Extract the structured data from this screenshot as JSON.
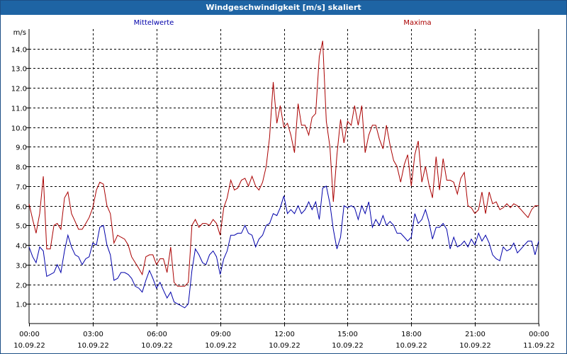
{
  "window": {
    "title": "Windgeschwindigkeit [m/s] skaliert"
  },
  "colors": {
    "background": "#ffffff",
    "title_bar": "#1e64a4",
    "grid": "#000000",
    "mittelwerte": "#0000aa",
    "maxima": "#aa0000"
  },
  "chart_data": {
    "type": "line",
    "title": "Windgeschwindigkeit [m/s] skaliert",
    "ylabel": "m/s",
    "xlabel": "",
    "ylim": [
      0,
      15
    ],
    "xlim": [
      0,
      24
    ],
    "y_ticks": [
      "1.0",
      "2.0",
      "3.0",
      "4.0",
      "5.0",
      "6.0",
      "7.0",
      "8.0",
      "9.0",
      "10.0",
      "11.0",
      "12.0",
      "13.0",
      "14.0"
    ],
    "x_ticks": [
      {
        "time": "00:00",
        "date": "10.09.22"
      },
      {
        "time": "03:00",
        "date": "10.09.22"
      },
      {
        "time": "06:00",
        "date": "10.09.22"
      },
      {
        "time": "09:00",
        "date": "10.09.22"
      },
      {
        "time": "12:00",
        "date": "10.09.22"
      },
      {
        "time": "15:00",
        "date": "10.09.22"
      },
      {
        "time": "18:00",
        "date": "10.09.22"
      },
      {
        "time": "21:00",
        "date": "10.09.22"
      },
      {
        "time": "00:00",
        "date": "11.09.22"
      }
    ],
    "grid": true,
    "legend": "top",
    "x_unit": "hours since 10.09.22 00:00",
    "series": [
      {
        "name": "Mittelwerte",
        "color": "#0000aa",
        "points": [
          [
            0.0,
            3.9
          ],
          [
            0.17,
            3.4
          ],
          [
            0.33,
            3.1
          ],
          [
            0.5,
            3.9
          ],
          [
            0.67,
            3.7
          ],
          [
            0.83,
            2.4
          ],
          [
            1.0,
            2.5
          ],
          [
            1.17,
            2.6
          ],
          [
            1.33,
            3.0
          ],
          [
            1.5,
            2.6
          ],
          [
            1.67,
            3.7
          ],
          [
            1.83,
            4.5
          ],
          [
            2.0,
            3.9
          ],
          [
            2.17,
            3.5
          ],
          [
            2.33,
            3.4
          ],
          [
            2.5,
            3.0
          ],
          [
            2.67,
            3.3
          ],
          [
            2.83,
            3.4
          ],
          [
            3.0,
            4.1
          ],
          [
            3.17,
            4.0
          ],
          [
            3.33,
            4.9
          ],
          [
            3.5,
            5.0
          ],
          [
            3.67,
            4.0
          ],
          [
            3.83,
            3.5
          ],
          [
            4.0,
            2.2
          ],
          [
            4.17,
            2.3
          ],
          [
            4.33,
            2.6
          ],
          [
            4.5,
            2.6
          ],
          [
            4.67,
            2.5
          ],
          [
            4.83,
            2.3
          ],
          [
            5.0,
            1.9
          ],
          [
            5.17,
            1.8
          ],
          [
            5.33,
            1.6
          ],
          [
            5.5,
            2.2
          ],
          [
            5.67,
            2.7
          ],
          [
            5.83,
            2.3
          ],
          [
            6.0,
            1.8
          ],
          [
            6.17,
            2.1
          ],
          [
            6.33,
            1.7
          ],
          [
            6.5,
            1.3
          ],
          [
            6.67,
            1.6
          ],
          [
            6.83,
            1.1
          ],
          [
            7.0,
            1.0
          ],
          [
            7.17,
            0.9
          ],
          [
            7.33,
            0.8
          ],
          [
            7.5,
            1.0
          ],
          [
            7.67,
            2.7
          ],
          [
            7.83,
            3.8
          ],
          [
            8.0,
            3.5
          ],
          [
            8.17,
            3.1
          ],
          [
            8.33,
            3.0
          ],
          [
            8.5,
            3.5
          ],
          [
            8.67,
            3.7
          ],
          [
            8.83,
            3.4
          ],
          [
            9.0,
            2.5
          ],
          [
            9.17,
            3.3
          ],
          [
            9.33,
            3.7
          ],
          [
            9.5,
            4.5
          ],
          [
            9.67,
            4.5
          ],
          [
            9.83,
            4.6
          ],
          [
            10.0,
            4.6
          ],
          [
            10.17,
            5.0
          ],
          [
            10.33,
            4.6
          ],
          [
            10.5,
            4.5
          ],
          [
            10.67,
            3.9
          ],
          [
            10.83,
            4.3
          ],
          [
            11.0,
            4.5
          ],
          [
            11.17,
            5.0
          ],
          [
            11.33,
            5.1
          ],
          [
            11.5,
            5.6
          ],
          [
            11.67,
            5.5
          ],
          [
            11.83,
            5.9
          ],
          [
            12.0,
            6.5
          ],
          [
            12.17,
            5.6
          ],
          [
            12.33,
            5.8
          ],
          [
            12.5,
            5.6
          ],
          [
            12.67,
            6.0
          ],
          [
            12.83,
            5.6
          ],
          [
            13.0,
            5.8
          ],
          [
            13.17,
            6.2
          ],
          [
            13.33,
            5.8
          ],
          [
            13.5,
            6.2
          ],
          [
            13.67,
            5.3
          ],
          [
            13.83,
            6.9
          ],
          [
            14.0,
            7.0
          ],
          [
            14.17,
            6.1
          ],
          [
            14.33,
            4.8
          ],
          [
            14.5,
            3.8
          ],
          [
            14.67,
            4.4
          ],
          [
            14.83,
            6.0
          ],
          [
            15.0,
            5.9
          ],
          [
            15.17,
            6.0
          ],
          [
            15.33,
            5.9
          ],
          [
            15.5,
            5.3
          ],
          [
            15.67,
            6.0
          ],
          [
            15.83,
            5.6
          ],
          [
            16.0,
            6.2
          ],
          [
            16.17,
            4.9
          ],
          [
            16.33,
            5.3
          ],
          [
            16.5,
            5.0
          ],
          [
            16.67,
            5.5
          ],
          [
            16.83,
            5.0
          ],
          [
            17.0,
            5.2
          ],
          [
            17.17,
            5.0
          ],
          [
            17.33,
            4.6
          ],
          [
            17.5,
            4.6
          ],
          [
            17.67,
            4.4
          ],
          [
            17.83,
            4.2
          ],
          [
            18.0,
            4.4
          ],
          [
            18.17,
            5.6
          ],
          [
            18.33,
            5.1
          ],
          [
            18.5,
            5.3
          ],
          [
            18.67,
            5.8
          ],
          [
            18.83,
            5.2
          ],
          [
            19.0,
            4.3
          ],
          [
            19.17,
            4.9
          ],
          [
            19.33,
            4.9
          ],
          [
            19.5,
            5.1
          ],
          [
            19.67,
            4.8
          ],
          [
            19.83,
            3.8
          ],
          [
            20.0,
            4.4
          ],
          [
            20.17,
            3.9
          ],
          [
            20.33,
            4.0
          ],
          [
            20.5,
            4.2
          ],
          [
            20.67,
            3.9
          ],
          [
            20.83,
            4.3
          ],
          [
            21.0,
            4.0
          ],
          [
            21.17,
            4.6
          ],
          [
            21.33,
            4.2
          ],
          [
            21.5,
            4.5
          ],
          [
            21.67,
            4.1
          ],
          [
            21.83,
            3.5
          ],
          [
            22.0,
            3.3
          ],
          [
            22.17,
            3.2
          ],
          [
            22.33,
            3.9
          ],
          [
            22.5,
            3.7
          ],
          [
            22.67,
            3.8
          ],
          [
            22.83,
            4.1
          ],
          [
            23.0,
            3.6
          ],
          [
            23.17,
            3.8
          ],
          [
            23.33,
            4.0
          ],
          [
            23.5,
            4.2
          ],
          [
            23.67,
            4.2
          ],
          [
            23.83,
            3.5
          ],
          [
            24.0,
            4.2
          ]
        ]
      },
      {
        "name": "Maxima",
        "color": "#aa0000",
        "points": [
          [
            0.0,
            6.1
          ],
          [
            0.17,
            5.3
          ],
          [
            0.33,
            4.6
          ],
          [
            0.5,
            5.6
          ],
          [
            0.67,
            7.5
          ],
          [
            0.83,
            3.8
          ],
          [
            1.0,
            3.8
          ],
          [
            1.17,
            5.0
          ],
          [
            1.33,
            5.1
          ],
          [
            1.5,
            4.8
          ],
          [
            1.67,
            6.4
          ],
          [
            1.83,
            6.7
          ],
          [
            2.0,
            5.6
          ],
          [
            2.17,
            5.2
          ],
          [
            2.33,
            4.8
          ],
          [
            2.5,
            4.8
          ],
          [
            2.67,
            5.1
          ],
          [
            2.83,
            5.4
          ],
          [
            3.0,
            5.9
          ],
          [
            3.17,
            6.8
          ],
          [
            3.33,
            7.2
          ],
          [
            3.5,
            7.1
          ],
          [
            3.67,
            6.0
          ],
          [
            3.83,
            5.6
          ],
          [
            4.0,
            4.1
          ],
          [
            4.17,
            4.5
          ],
          [
            4.33,
            4.4
          ],
          [
            4.5,
            4.3
          ],
          [
            4.67,
            4.0
          ],
          [
            4.83,
            3.4
          ],
          [
            5.0,
            3.1
          ],
          [
            5.17,
            2.8
          ],
          [
            5.33,
            2.5
          ],
          [
            5.5,
            3.4
          ],
          [
            5.67,
            3.5
          ],
          [
            5.83,
            3.5
          ],
          [
            6.0,
            3.0
          ],
          [
            6.17,
            3.3
          ],
          [
            6.33,
            3.3
          ],
          [
            6.5,
            2.6
          ],
          [
            6.67,
            3.9
          ],
          [
            6.83,
            2.1
          ],
          [
            7.0,
            1.9
          ],
          [
            7.17,
            1.9
          ],
          [
            7.33,
            1.9
          ],
          [
            7.5,
            2.1
          ],
          [
            7.67,
            5.0
          ],
          [
            7.83,
            5.3
          ],
          [
            8.0,
            4.9
          ],
          [
            8.17,
            5.1
          ],
          [
            8.33,
            5.1
          ],
          [
            8.5,
            5.0
          ],
          [
            8.67,
            5.3
          ],
          [
            8.83,
            5.1
          ],
          [
            9.0,
            4.5
          ],
          [
            9.17,
            5.9
          ],
          [
            9.33,
            6.4
          ],
          [
            9.5,
            7.3
          ],
          [
            9.67,
            6.8
          ],
          [
            9.83,
            6.9
          ],
          [
            10.0,
            7.3
          ],
          [
            10.17,
            7.4
          ],
          [
            10.33,
            7.0
          ],
          [
            10.5,
            7.5
          ],
          [
            10.67,
            7.0
          ],
          [
            10.83,
            6.8
          ],
          [
            11.0,
            7.2
          ],
          [
            11.17,
            8.0
          ],
          [
            11.33,
            9.5
          ],
          [
            11.5,
            12.3
          ],
          [
            11.67,
            10.2
          ],
          [
            11.83,
            11.1
          ],
          [
            12.0,
            10.0
          ],
          [
            12.17,
            10.2
          ],
          [
            12.33,
            9.6
          ],
          [
            12.5,
            8.7
          ],
          [
            12.67,
            11.2
          ],
          [
            12.83,
            10.1
          ],
          [
            13.0,
            10.1
          ],
          [
            13.17,
            9.6
          ],
          [
            13.33,
            10.5
          ],
          [
            13.5,
            10.7
          ],
          [
            13.67,
            13.6
          ],
          [
            13.83,
            14.4
          ],
          [
            14.0,
            10.3
          ],
          [
            14.17,
            9.0
          ],
          [
            14.33,
            6.2
          ],
          [
            14.5,
            8.6
          ],
          [
            14.67,
            10.4
          ],
          [
            14.83,
            9.2
          ],
          [
            15.0,
            10.3
          ],
          [
            15.17,
            10.1
          ],
          [
            15.33,
            11.1
          ],
          [
            15.5,
            10.1
          ],
          [
            15.67,
            11.1
          ],
          [
            15.83,
            8.7
          ],
          [
            16.0,
            9.6
          ],
          [
            16.17,
            10.1
          ],
          [
            16.33,
            10.1
          ],
          [
            16.5,
            9.4
          ],
          [
            16.67,
            8.9
          ],
          [
            16.83,
            10.1
          ],
          [
            17.0,
            9.1
          ],
          [
            17.17,
            8.3
          ],
          [
            17.33,
            8.0
          ],
          [
            17.5,
            7.2
          ],
          [
            17.67,
            8.1
          ],
          [
            17.83,
            8.6
          ],
          [
            18.0,
            7.0
          ],
          [
            18.17,
            8.6
          ],
          [
            18.33,
            9.3
          ],
          [
            18.5,
            7.2
          ],
          [
            18.67,
            8.0
          ],
          [
            18.83,
            7.1
          ],
          [
            19.0,
            6.4
          ],
          [
            19.17,
            8.5
          ],
          [
            19.33,
            6.8
          ],
          [
            19.5,
            8.4
          ],
          [
            19.67,
            7.3
          ],
          [
            19.83,
            7.3
          ],
          [
            20.0,
            7.2
          ],
          [
            20.17,
            6.6
          ],
          [
            20.33,
            7.4
          ],
          [
            20.5,
            7.7
          ],
          [
            20.67,
            6.0
          ],
          [
            20.83,
            5.9
          ],
          [
            21.0,
            5.6
          ],
          [
            21.17,
            5.8
          ],
          [
            21.33,
            6.7
          ],
          [
            21.5,
            5.6
          ],
          [
            21.67,
            6.7
          ],
          [
            21.83,
            6.1
          ],
          [
            22.0,
            6.2
          ],
          [
            22.17,
            5.8
          ],
          [
            22.33,
            5.9
          ],
          [
            22.5,
            6.1
          ],
          [
            22.67,
            5.9
          ],
          [
            22.83,
            6.1
          ],
          [
            23.0,
            6.0
          ],
          [
            23.17,
            5.8
          ],
          [
            23.33,
            5.6
          ],
          [
            23.5,
            5.4
          ],
          [
            23.67,
            5.8
          ],
          [
            23.83,
            6.0
          ],
          [
            24.0,
            6.0
          ]
        ]
      }
    ]
  }
}
